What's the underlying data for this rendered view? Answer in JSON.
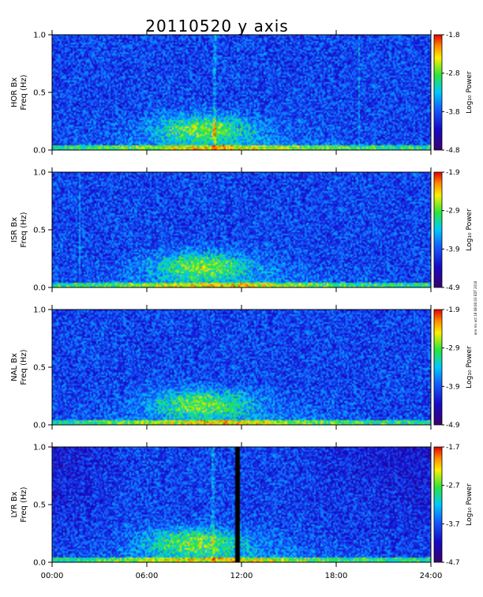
{
  "title": "20110520 y axis",
  "stamp": "ann ms oct 18 08:06:03 EDT 2016",
  "chart_data": [
    {
      "type": "heatmap",
      "ylabel_line1": "HOR Bx",
      "ylabel_line2": "Freq (Hz)",
      "yticks": [
        "1.0",
        "0.5",
        "0.0"
      ],
      "ylim": [
        0,
        1.0
      ],
      "colorbar": {
        "label": "Log₁₀ Power",
        "ticks": [
          "-1.8",
          "-2.8",
          "-3.8",
          "-4.8"
        ],
        "range": [
          -4.8,
          -1.8
        ]
      },
      "activity_center_hour": 9.5,
      "activity_center_freq": 0.18,
      "vertical_lines_hours": [
        10.3,
        19.5
      ]
    },
    {
      "type": "heatmap",
      "ylabel_line1": "ISR Bx",
      "ylabel_line2": "Freq (Hz)",
      "yticks": [
        "1.0",
        "0.5",
        "0.0"
      ],
      "ylim": [
        0,
        1.0
      ],
      "colorbar": {
        "label": "Log₁₀ Power",
        "ticks": [
          "-1.9",
          "-2.9",
          "-3.9",
          "-4.9"
        ],
        "range": [
          -4.9,
          -1.9
        ]
      },
      "activity_center_hour": 9.5,
      "activity_center_freq": 0.18,
      "vertical_lines_hours": [
        1.7
      ]
    },
    {
      "type": "heatmap",
      "ylabel_line1": "NAL Bx",
      "ylabel_line2": "Freq (Hz)",
      "yticks": [
        "1.0",
        "0.5",
        "0.0"
      ],
      "ylim": [
        0,
        1.0
      ],
      "colorbar": {
        "label": "Log₁₀ Power",
        "ticks": [
          "-1.9",
          "-2.9",
          "-3.9",
          "-4.9"
        ],
        "range": [
          -4.9,
          -1.9
        ]
      },
      "activity_center_hour": 9.5,
      "activity_center_freq": 0.18,
      "vertical_lines_hours": []
    },
    {
      "type": "heatmap",
      "ylabel_line1": "LYR Bx",
      "ylabel_line2": "Freq (Hz)",
      "yticks": [
        "1.0",
        "0.5",
        "0.0"
      ],
      "ylim": [
        0,
        1.0
      ],
      "colorbar": {
        "label": "Log₁₀ Power",
        "ticks": [
          "-1.7",
          "-2.7",
          "-3.7",
          "-4.7"
        ],
        "range": [
          -4.7,
          -1.7
        ]
      },
      "activity_center_hour": 9.0,
      "activity_center_freq": 0.17,
      "vertical_lines_hours": [
        10.2
      ],
      "data_gap_hours": [
        11.6,
        11.9
      ]
    }
  ],
  "xticks": [
    "00:00",
    "06:00",
    "12:00",
    "18:00",
    "24:00"
  ],
  "xlim_hours": [
    0,
    24
  ]
}
